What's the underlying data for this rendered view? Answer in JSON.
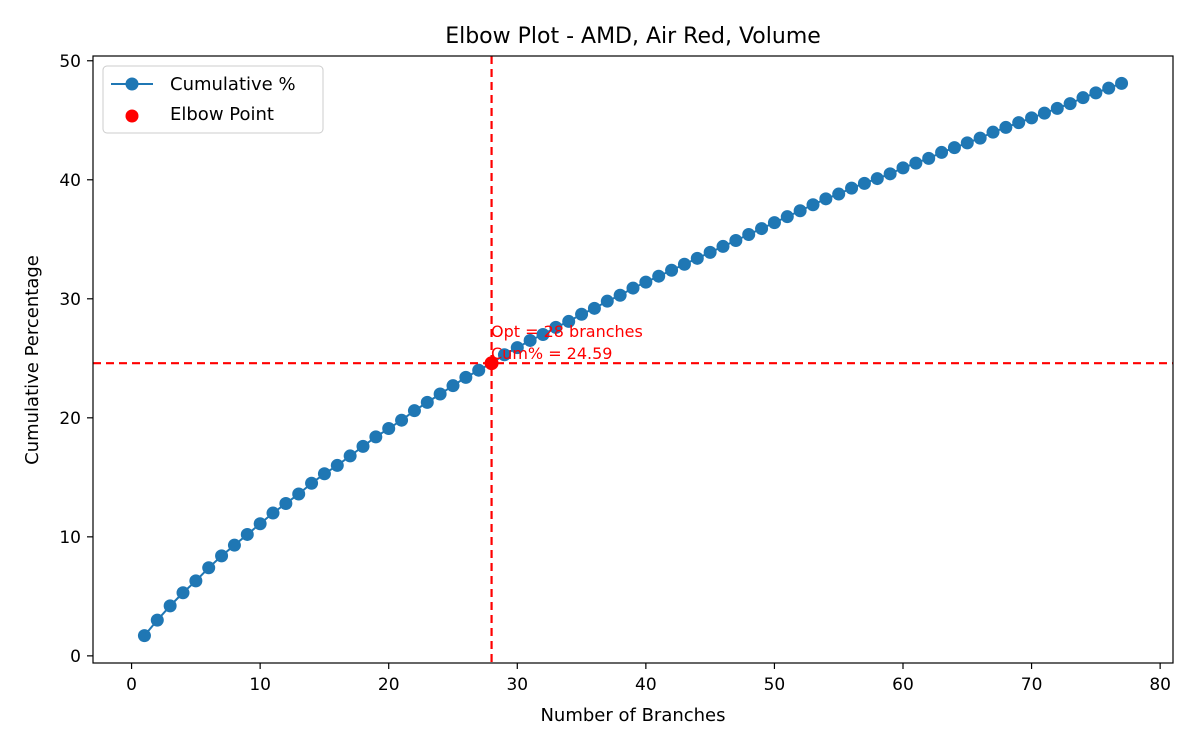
{
  "chart_data": {
    "type": "line",
    "title": "Elbow Plot - AMD, Air Red, Volume",
    "xlabel": "Number of Branches",
    "ylabel": "Cumulative Percentage",
    "xlim": [
      -3,
      81
    ],
    "ylim": [
      -0.6,
      50.4
    ],
    "xticks": [
      0,
      10,
      20,
      30,
      40,
      50,
      60,
      70,
      80
    ],
    "yticks": [
      0,
      10,
      20,
      30,
      40,
      50
    ],
    "grid": false,
    "legend_position": "upper-left",
    "series": [
      {
        "name": "Cumulative %",
        "color": "#1f77b4",
        "marker": "circle",
        "x": [
          1,
          2,
          3,
          4,
          5,
          6,
          7,
          8,
          9,
          10,
          11,
          12,
          13,
          14,
          15,
          16,
          17,
          18,
          19,
          20,
          21,
          22,
          23,
          24,
          25,
          26,
          27,
          28,
          29,
          30,
          31,
          32,
          33,
          34,
          35,
          36,
          37,
          38,
          39,
          40,
          41,
          42,
          43,
          44,
          45,
          46,
          47,
          48,
          49,
          50,
          51,
          52,
          53,
          54,
          55,
          56,
          57,
          58,
          59,
          60,
          61,
          62,
          63,
          64,
          65,
          66,
          67,
          68,
          69,
          70,
          71,
          72,
          73,
          74,
          75,
          76,
          77
        ],
        "y": [
          1.7,
          3.0,
          4.2,
          5.3,
          6.3,
          7.4,
          8.4,
          9.3,
          10.2,
          11.1,
          12.0,
          12.8,
          13.6,
          14.5,
          15.3,
          16.0,
          16.8,
          17.6,
          18.4,
          19.1,
          19.8,
          20.6,
          21.3,
          22.0,
          22.7,
          23.4,
          24.0,
          24.59,
          25.3,
          25.9,
          26.5,
          27.0,
          27.6,
          28.1,
          28.7,
          29.2,
          29.8,
          30.3,
          30.9,
          31.4,
          31.9,
          32.4,
          32.9,
          33.4,
          33.9,
          34.4,
          34.9,
          35.4,
          35.9,
          36.4,
          36.9,
          37.4,
          37.9,
          38.4,
          38.8,
          39.3,
          39.7,
          40.1,
          40.5,
          41.0,
          41.4,
          41.8,
          42.3,
          42.7,
          43.1,
          43.5,
          44.0,
          44.4,
          44.8,
          45.2,
          45.6,
          46.0,
          46.4,
          46.9,
          47.3,
          47.7,
          48.1
        ]
      }
    ],
    "elbow_point": {
      "name": "Elbow Point",
      "x": 28,
      "y": 24.59,
      "color": "#ff0000"
    },
    "reference_lines": {
      "vertical_x": 28,
      "horizontal_y": 24.59,
      "color": "#ff0000",
      "style": "dashed"
    },
    "annotation": {
      "line1": "Opt = 28 branches",
      "line2": "Cum% = 24.59",
      "color": "#ff0000"
    }
  }
}
